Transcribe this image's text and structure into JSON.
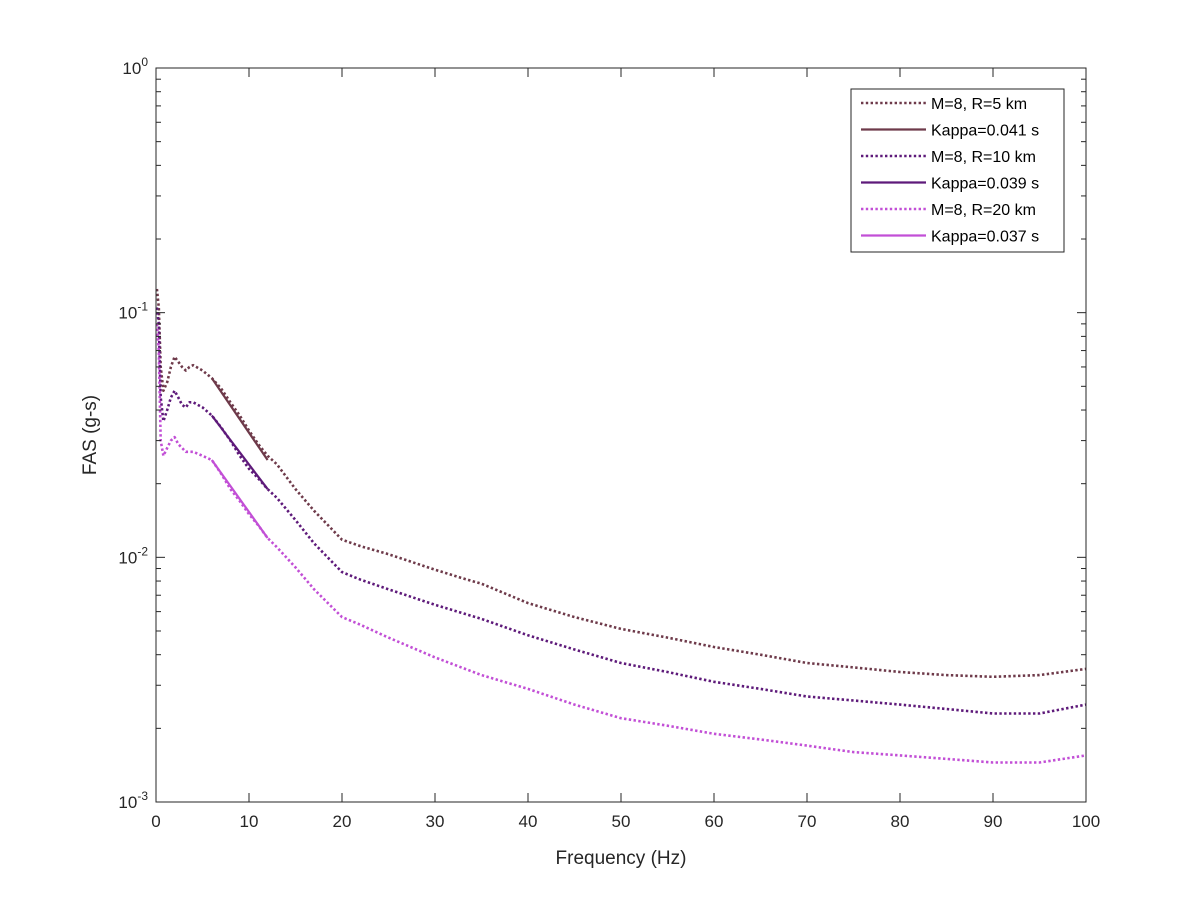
{
  "chart_data": {
    "type": "line",
    "title": "",
    "xlabel": "Frequency (Hz)",
    "ylabel": "FAS (g-s)",
    "xlim": [
      0,
      100
    ],
    "ylim": [
      0.001,
      1
    ],
    "yscale": "log",
    "grid": false,
    "legend_position": "top-right",
    "x_ticks": [
      0,
      10,
      20,
      30,
      40,
      50,
      60,
      70,
      80,
      90,
      100
    ],
    "x_tick_labels": [
      "0",
      "10",
      "20",
      "30",
      "40",
      "50",
      "60",
      "70",
      "80",
      "90",
      "100"
    ],
    "y_ticks": [
      0.001,
      0.01,
      0.1,
      1
    ],
    "y_tick_labels": [
      {
        "base": "10",
        "exp": "-3"
      },
      {
        "base": "10",
        "exp": "-2"
      },
      {
        "base": "10",
        "exp": "-1"
      },
      {
        "base": "10",
        "exp": "0"
      }
    ],
    "series": [
      {
        "name": "M=8, R=5 km",
        "style": "dotted",
        "color": "#6e3a4a",
        "points": [
          [
            0.1,
            0.125
          ],
          [
            0.3,
            0.105
          ],
          [
            0.5,
            0.06
          ],
          [
            0.8,
            0.048
          ],
          [
            1.2,
            0.052
          ],
          [
            1.6,
            0.06
          ],
          [
            2.0,
            0.066
          ],
          [
            2.4,
            0.063
          ],
          [
            2.8,
            0.06
          ],
          [
            3.2,
            0.058
          ],
          [
            3.6,
            0.06
          ],
          [
            4.0,
            0.061
          ],
          [
            5.0,
            0.058
          ],
          [
            6.0,
            0.054
          ],
          [
            7.0,
            0.049
          ],
          [
            8.0,
            0.043
          ],
          [
            9.0,
            0.038
          ],
          [
            10.0,
            0.033
          ],
          [
            11.0,
            0.029
          ],
          [
            12.0,
            0.026
          ],
          [
            13.0,
            0.024
          ],
          [
            15.0,
            0.019
          ],
          [
            17.0,
            0.0155
          ],
          [
            20.0,
            0.0118
          ],
          [
            22.0,
            0.0111
          ],
          [
            25.0,
            0.0103
          ],
          [
            30.0,
            0.0089
          ],
          [
            33.0,
            0.0082
          ],
          [
            35.0,
            0.0078
          ],
          [
            40.0,
            0.0065
          ],
          [
            45.0,
            0.0057
          ],
          [
            50.0,
            0.0051
          ],
          [
            55.0,
            0.0047
          ],
          [
            60.0,
            0.0043
          ],
          [
            65.0,
            0.004
          ],
          [
            70.0,
            0.0037
          ],
          [
            75.0,
            0.00355
          ],
          [
            80.0,
            0.0034
          ],
          [
            85.0,
            0.0033
          ],
          [
            90.0,
            0.00325
          ],
          [
            95.0,
            0.0033
          ],
          [
            100.0,
            0.0035
          ]
        ]
      },
      {
        "name": "Kappa=0.041 s",
        "style": "solid",
        "color": "#6e3a4a",
        "points": [
          [
            6.0,
            0.054
          ],
          [
            12.0,
            0.025
          ]
        ]
      },
      {
        "name": "M=8, R=10 km",
        "style": "dotted",
        "color": "#5e1a7a",
        "points": [
          [
            0.1,
            0.105
          ],
          [
            0.3,
            0.09
          ],
          [
            0.5,
            0.045
          ],
          [
            0.8,
            0.036
          ],
          [
            1.2,
            0.04
          ],
          [
            1.6,
            0.045
          ],
          [
            2.0,
            0.048
          ],
          [
            2.4,
            0.045
          ],
          [
            2.8,
            0.042
          ],
          [
            3.2,
            0.041
          ],
          [
            3.6,
            0.043
          ],
          [
            4.0,
            0.043
          ],
          [
            5.0,
            0.041
          ],
          [
            6.0,
            0.038
          ],
          [
            7.0,
            0.034
          ],
          [
            8.0,
            0.03
          ],
          [
            9.0,
            0.026
          ],
          [
            10.0,
            0.023
          ],
          [
            11.0,
            0.021
          ],
          [
            12.0,
            0.019
          ],
          [
            13.0,
            0.0175
          ],
          [
            15.0,
            0.0142
          ],
          [
            17.0,
            0.0114
          ],
          [
            20.0,
            0.0087
          ],
          [
            22.0,
            0.0081
          ],
          [
            25.0,
            0.0074
          ],
          [
            30.0,
            0.0064
          ],
          [
            35.0,
            0.0056
          ],
          [
            40.0,
            0.0048
          ],
          [
            45.0,
            0.0042
          ],
          [
            50.0,
            0.0037
          ],
          [
            55.0,
            0.0034
          ],
          [
            60.0,
            0.0031
          ],
          [
            65.0,
            0.0029
          ],
          [
            70.0,
            0.0027
          ],
          [
            75.0,
            0.0026
          ],
          [
            80.0,
            0.0025
          ],
          [
            85.0,
            0.0024
          ],
          [
            90.0,
            0.0023
          ],
          [
            95.0,
            0.0023
          ],
          [
            100.0,
            0.0025
          ]
        ]
      },
      {
        "name": "Kappa=0.039 s",
        "style": "solid",
        "color": "#5e1a7a",
        "points": [
          [
            6.0,
            0.038
          ],
          [
            12.0,
            0.019
          ]
        ]
      },
      {
        "name": "M=8, R=20 km",
        "style": "dotted",
        "color": "#c24fd6",
        "points": [
          [
            0.1,
            0.09
          ],
          [
            0.3,
            0.07
          ],
          [
            0.5,
            0.03
          ],
          [
            0.8,
            0.026
          ],
          [
            1.2,
            0.028
          ],
          [
            1.6,
            0.03
          ],
          [
            2.0,
            0.031
          ],
          [
            2.4,
            0.029
          ],
          [
            2.8,
            0.028
          ],
          [
            3.2,
            0.027
          ],
          [
            3.6,
            0.027
          ],
          [
            4.0,
            0.027
          ],
          [
            5.0,
            0.026
          ],
          [
            6.0,
            0.025
          ],
          [
            7.0,
            0.022
          ],
          [
            8.0,
            0.019
          ],
          [
            9.0,
            0.017
          ],
          [
            10.0,
            0.015
          ],
          [
            11.0,
            0.0135
          ],
          [
            12.0,
            0.012
          ],
          [
            13.0,
            0.011
          ],
          [
            15.0,
            0.0091
          ],
          [
            17.0,
            0.0074
          ],
          [
            20.0,
            0.0057
          ],
          [
            22.0,
            0.0053
          ],
          [
            25.0,
            0.0047
          ],
          [
            30.0,
            0.0039
          ],
          [
            35.0,
            0.0033
          ],
          [
            40.0,
            0.0029
          ],
          [
            45.0,
            0.0025
          ],
          [
            50.0,
            0.0022
          ],
          [
            55.0,
            0.00205
          ],
          [
            60.0,
            0.0019
          ],
          [
            65.0,
            0.0018
          ],
          [
            70.0,
            0.0017
          ],
          [
            75.0,
            0.0016
          ],
          [
            80.0,
            0.00155
          ],
          [
            85.0,
            0.0015
          ],
          [
            90.0,
            0.00145
          ],
          [
            95.0,
            0.00145
          ],
          [
            100.0,
            0.00155
          ]
        ]
      },
      {
        "name": "Kappa=0.037 s",
        "style": "solid",
        "color": "#c24fd6",
        "points": [
          [
            6.0,
            0.025
          ],
          [
            12.0,
            0.012
          ]
        ]
      }
    ]
  }
}
